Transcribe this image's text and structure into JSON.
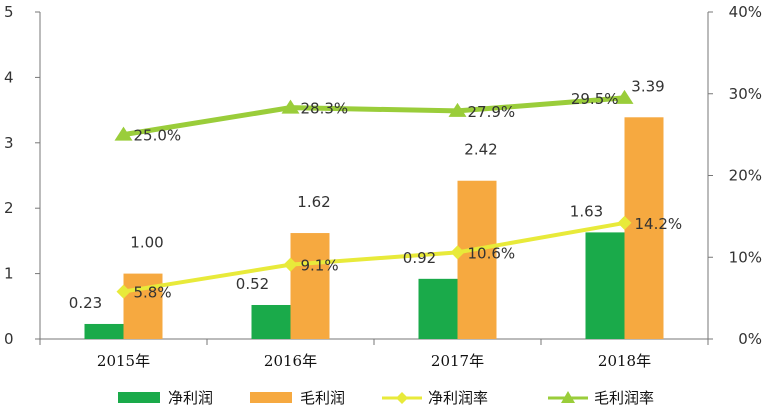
{
  "chart_data": {
    "type": "bar",
    "categories": [
      "2015年",
      "2016年",
      "2017年",
      "2018年"
    ],
    "series": [
      {
        "name": "净利润",
        "kind": "bar",
        "axis": "left",
        "color": "#1aaa4a",
        "values": [
          0.23,
          0.52,
          0.92,
          1.63
        ],
        "labels": [
          "0.23",
          "0.52",
          "0.92",
          "1.63"
        ]
      },
      {
        "name": "毛利润",
        "kind": "bar",
        "axis": "left",
        "color": "#f6a940",
        "values": [
          1.0,
          1.62,
          2.42,
          3.39
        ],
        "labels": [
          "1.00",
          "1.62",
          "2.42",
          "3.39"
        ]
      },
      {
        "name": "净利润率",
        "kind": "line",
        "marker": "diamond",
        "axis": "right",
        "color": "#e8ea3a",
        "values": [
          5.8,
          9.1,
          10.6,
          14.2
        ],
        "labels": [
          "5.8%",
          "9.1%",
          "10.6%",
          "14.2%"
        ]
      },
      {
        "name": "毛利润率",
        "kind": "line",
        "marker": "triangle",
        "axis": "right",
        "color": "#9acd3a",
        "values": [
          25.0,
          28.3,
          27.9,
          29.5
        ],
        "labels": [
          "25.0%",
          "28.3%",
          "27.9%",
          "29.5%"
        ]
      }
    ],
    "y_left": {
      "min": 0,
      "max": 5,
      "ticks": [
        "0",
        "1",
        "2",
        "3",
        "4",
        "5"
      ]
    },
    "y_right": {
      "min": 0,
      "max": 40,
      "ticks": [
        "0%",
        "10%",
        "20%",
        "30%",
        "40%"
      ]
    },
    "grid": false,
    "legend": "bottom"
  }
}
